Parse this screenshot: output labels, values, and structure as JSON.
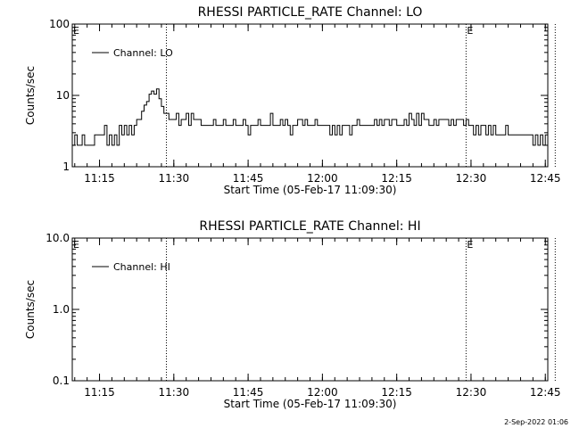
{
  "chart_data": [
    {
      "type": "line",
      "title": "RHESSI PARTICLE_RATE Channel: LO",
      "xlabel": "Start Time (05-Feb-17 11:09:30)",
      "ylabel": "Counts/sec",
      "yscale": "log",
      "ylim": [
        1,
        100
      ],
      "yticks": [
        1,
        10,
        100
      ],
      "ytick_labels": [
        "1",
        "10",
        "100"
      ],
      "xlim_min": [
        0,
        96
      ],
      "xticks_min": [
        5.5,
        20.5,
        35.5,
        50.5,
        65.5,
        80.5,
        95.5
      ],
      "xtick_labels": [
        "11:15",
        "11:30",
        "11:45",
        "12:00",
        "12:15",
        "12:30",
        "12:45"
      ],
      "grid": false,
      "legend": {
        "position": "top-left",
        "entries": [
          "Channel: LO"
        ]
      },
      "markers": [
        {
          "label": "",
          "x": 19
        },
        {
          "label": "E",
          "x": 79.5
        },
        {
          "label": "",
          "x": 97.5
        }
      ],
      "corner_label": "E",
      "series": [
        {
          "name": "Channel: LO",
          "x": [
            0,
            0.5,
            1,
            1.5,
            2,
            2.5,
            3,
            3.5,
            4,
            4.5,
            5,
            5.5,
            6,
            6.5,
            7,
            7.5,
            8,
            8.5,
            9,
            9.5,
            10,
            10.5,
            11,
            11.5,
            12,
            12.5,
            13,
            13.5,
            14,
            14.5,
            15,
            15.5,
            16,
            16.5,
            17,
            17.5,
            18,
            18.5,
            19,
            19.5,
            20,
            20.5,
            21,
            21.5,
            22,
            22.5,
            23,
            23.5,
            24,
            24.5,
            25,
            25.5,
            26,
            26.5,
            27,
            27.5,
            28,
            28.5,
            29,
            29.5,
            30,
            30.5,
            31,
            31.5,
            32,
            32.5,
            33,
            33.5,
            34,
            34.5,
            35,
            35.5,
            36,
            36.5,
            37,
            37.5,
            38,
            38.5,
            39,
            39.5,
            40,
            40.5,
            41,
            41.5,
            42,
            42.5,
            43,
            43.5,
            44,
            44.5,
            45,
            45.5,
            46,
            46.5,
            47,
            47.5,
            48,
            48.5,
            49,
            49.5,
            50,
            50.5,
            51,
            51.5,
            52,
            52.5,
            53,
            53.5,
            54,
            54.5,
            55,
            55.5,
            56,
            56.5,
            57,
            57.5,
            58,
            58.5,
            59,
            59.5,
            60,
            60.5,
            61,
            61.5,
            62,
            62.5,
            63,
            63.5,
            64,
            64.5,
            65,
            65.5,
            66,
            66.5,
            67,
            67.5,
            68,
            68.5,
            69,
            69.5,
            70,
            70.5,
            71,
            71.5,
            72,
            72.5,
            73,
            73.5,
            74,
            74.5,
            75,
            75.5,
            76,
            76.5,
            77,
            77.5,
            78,
            78.5,
            79,
            79.5,
            80,
            80.5,
            81,
            81.5,
            82,
            82.5,
            83,
            83.5,
            84,
            84.5,
            85,
            85.5,
            86,
            86.5,
            87,
            87.5,
            88,
            88.5,
            89,
            89.5,
            90,
            90.5,
            91,
            91.5,
            92,
            92.5,
            93,
            93.5,
            94,
            94.5,
            95,
            95.5,
            96
          ],
          "values": [
            2,
            2.8,
            2,
            2,
            2.8,
            2,
            2,
            2,
            2,
            2.8,
            2.8,
            2.8,
            2.8,
            3.8,
            2,
            2.8,
            2,
            2.8,
            2,
            3.8,
            2.8,
            3.8,
            2.8,
            3.8,
            2.8,
            3.8,
            4.6,
            4.6,
            6,
            7.3,
            8.2,
            10.4,
            11.5,
            10.4,
            12.3,
            9,
            7,
            5.6,
            5.6,
            4.6,
            4.6,
            4.6,
            5.6,
            3.8,
            4.6,
            4.6,
            5.6,
            3.8,
            5.6,
            4.6,
            4.6,
            4.6,
            3.8,
            3.8,
            3.8,
            3.8,
            3.8,
            4.6,
            3.8,
            3.8,
            3.8,
            4.6,
            3.8,
            3.8,
            3.8,
            4.6,
            3.8,
            3.8,
            3.8,
            4.6,
            3.8,
            2.8,
            3.8,
            3.8,
            3.8,
            4.6,
            3.8,
            3.8,
            3.8,
            3.8,
            5.6,
            3.8,
            3.8,
            3.8,
            4.6,
            3.8,
            4.6,
            3.8,
            2.8,
            3.8,
            3.8,
            4.6,
            4.6,
            3.8,
            4.6,
            3.8,
            3.8,
            3.8,
            4.6,
            3.8,
            3.8,
            3.8,
            3.8,
            3.8,
            2.8,
            3.8,
            2.8,
            3.8,
            2.8,
            3.8,
            3.8,
            3.8,
            2.8,
            3.8,
            3.8,
            4.6,
            3.8,
            3.8,
            3.8,
            3.8,
            3.8,
            3.8,
            4.6,
            3.8,
            4.6,
            3.8,
            4.6,
            4.6,
            3.8,
            4.6,
            4.6,
            3.8,
            3.8,
            3.8,
            4.6,
            3.8,
            5.6,
            4.6,
            3.8,
            5.6,
            3.8,
            5.6,
            4.6,
            4.6,
            3.8,
            3.8,
            4.6,
            3.8,
            4.6,
            4.6,
            4.6,
            4.6,
            3.8,
            4.6,
            3.8,
            4.6,
            4.6,
            4.6,
            3.8,
            4.6,
            3.8,
            3.8,
            2.8,
            3.8,
            2.8,
            3.8,
            3.8,
            2.8,
            3.8,
            2.8,
            3.8,
            2.8,
            2.8,
            2.8,
            2.8,
            3.8,
            2.8,
            2.8,
            2.8,
            2.8,
            2.8,
            2.8,
            2.8,
            2.8,
            2.8,
            2.8,
            2,
            2.8,
            2,
            2.8,
            2,
            2.8,
            2
          ]
        }
      ]
    },
    {
      "type": "line",
      "title": "RHESSI PARTICLE_RATE Channel: HI",
      "xlabel": "Start Time (05-Feb-17 11:09:30)",
      "ylabel": "Counts/sec",
      "yscale": "log",
      "ylim": [
        0.1,
        10
      ],
      "yticks": [
        0.1,
        1,
        10
      ],
      "ytick_labels": [
        "0.1",
        "1.0",
        "10.0"
      ],
      "xlim_min": [
        0,
        96
      ],
      "xticks_min": [
        5.5,
        20.5,
        35.5,
        50.5,
        65.5,
        80.5,
        95.5
      ],
      "xtick_labels": [
        "11:15",
        "11:30",
        "11:45",
        "12:00",
        "12:15",
        "12:30",
        "12:45"
      ],
      "grid": false,
      "legend": {
        "position": "top-left",
        "entries": [
          "Channel: HI"
        ]
      },
      "markers": [
        {
          "label": "",
          "x": 19
        },
        {
          "label": "E",
          "x": 79.5
        },
        {
          "label": "",
          "x": 97.5
        }
      ],
      "corner_label": "E",
      "series": [
        {
          "name": "Channel: HI",
          "x": [],
          "values": []
        }
      ]
    }
  ],
  "footer": "2-Sep-2022 01:06"
}
